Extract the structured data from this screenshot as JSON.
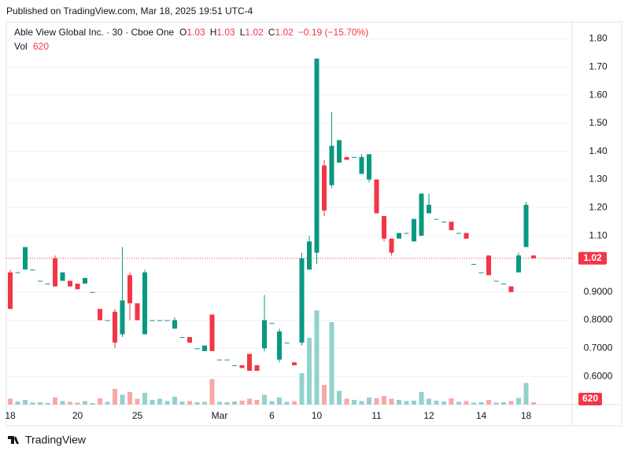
{
  "published": "Published on TradingView.com, Mar 18, 2025 19:51 UTC-4",
  "footer": "TradingView",
  "chart_data": {
    "type": "candlestick",
    "title": "Able View Global Inc. · 30 · Cboe One",
    "ohlc_labels": [
      "O",
      "H",
      "L",
      "C"
    ],
    "change_text": "−0.19 (−15.70%)",
    "volume_label": "Vol",
    "up_color": "#089981",
    "down_color": "#f23645",
    "volume_up_color": "#92d2cc",
    "volume_down_color": "#f7a9a7",
    "ylim": [
      0.5,
      1.86
    ],
    "volume_ylim": [
      0,
      30000
    ],
    "grid": true,
    "yticks": [
      {
        "value": 0.6,
        "label": "0.6000"
      },
      {
        "value": 0.7,
        "label": "0.7000"
      },
      {
        "value": 0.8,
        "label": "0.8000"
      },
      {
        "value": 0.9,
        "label": "0.9000"
      },
      {
        "value": 1.1,
        "label": "1.10"
      },
      {
        "value": 1.2,
        "label": "1.20"
      },
      {
        "value": 1.3,
        "label": "1.30"
      },
      {
        "value": 1.4,
        "label": "1.40"
      },
      {
        "value": 1.5,
        "label": "1.50"
      },
      {
        "value": 1.6,
        "label": "1.60"
      },
      {
        "value": 1.7,
        "label": "1.70"
      },
      {
        "value": 1.8,
        "label": "1.80"
      }
    ],
    "categories": [
      "18",
      null,
      null,
      null,
      null,
      null,
      null,
      null,
      null,
      "20",
      null,
      null,
      null,
      null,
      null,
      null,
      null,
      "25",
      null,
      null,
      null,
      null,
      null,
      null,
      null,
      null,
      null,
      null,
      "Mar",
      null,
      null,
      null,
      null,
      null,
      null,
      "6",
      null,
      null,
      null,
      null,
      null,
      "10",
      null,
      null,
      null,
      null,
      null,
      null,
      null,
      "11",
      null,
      null,
      null,
      null,
      null,
      null,
      "12",
      null,
      null,
      null,
      null,
      null,
      null,
      "14",
      null,
      null,
      null,
      null,
      null,
      "18",
      null
    ],
    "open": [
      0.97,
      0.97,
      0.98,
      0.98,
      0.94,
      0.93,
      1.02,
      0.94,
      0.94,
      0.93,
      0.93,
      0.9,
      0.84,
      0.8,
      0.83,
      0.75,
      0.96,
      0.86,
      0.75,
      0.8,
      0.8,
      0.8,
      0.77,
      0.74,
      0.74,
      0.7,
      0.69,
      0.82,
      0.66,
      0.66,
      0.64,
      0.64,
      0.68,
      0.64,
      0.7,
      0.79,
      0.66,
      0.72,
      0.65,
      0.72,
      0.98,
      1.04,
      1.35,
      1.28,
      1.36,
      1.38,
      1.38,
      1.32,
      1.3,
      1.3,
      1.17,
      1.09,
      1.09,
      1.11,
      1.08,
      1.1,
      1.18,
      1.16,
      1.15,
      1.15,
      1.11,
      1.11,
      1.0,
      0.97,
      1.03,
      0.94,
      0.93,
      0.92,
      0.97,
      1.06,
      1.03
    ],
    "high": [
      0.98,
      0.97,
      1.06,
      0.98,
      0.94,
      0.93,
      1.03,
      0.97,
      0.94,
      0.93,
      0.95,
      0.9,
      0.84,
      0.8,
      0.84,
      1.06,
      0.97,
      0.86,
      0.98,
      0.8,
      0.8,
      0.8,
      0.81,
      0.74,
      0.74,
      0.7,
      0.71,
      0.82,
      0.66,
      0.66,
      0.64,
      0.64,
      0.68,
      0.64,
      0.89,
      0.79,
      0.77,
      0.72,
      0.65,
      1.04,
      1.1,
      1.73,
      1.37,
      1.54,
      1.44,
      1.38,
      1.38,
      1.39,
      1.39,
      1.3,
      1.17,
      1.09,
      1.11,
      1.11,
      1.16,
      1.25,
      1.25,
      1.16,
      1.15,
      1.15,
      1.11,
      1.11,
      1.0,
      0.97,
      1.03,
      0.94,
      0.93,
      0.92,
      1.04,
      1.22,
      1.03
    ],
    "low": [
      0.84,
      0.97,
      0.98,
      0.98,
      0.94,
      0.93,
      0.92,
      0.94,
      0.92,
      0.91,
      0.93,
      0.9,
      0.8,
      0.8,
      0.7,
      0.74,
      0.8,
      0.8,
      0.75,
      0.8,
      0.8,
      0.8,
      0.77,
      0.74,
      0.72,
      0.7,
      0.69,
      0.69,
      0.66,
      0.66,
      0.64,
      0.63,
      0.62,
      0.62,
      0.69,
      0.79,
      0.65,
      0.72,
      0.64,
      0.71,
      0.98,
      1.0,
      1.17,
      1.27,
      1.36,
      1.37,
      1.38,
      1.32,
      1.29,
      1.18,
      1.08,
      1.03,
      1.09,
      1.11,
      1.08,
      1.1,
      1.18,
      1.16,
      1.15,
      1.12,
      1.11,
      1.09,
      1.0,
      0.97,
      0.96,
      0.94,
      0.93,
      0.9,
      0.97,
      1.06,
      1.02
    ],
    "close": [
      0.84,
      0.97,
      1.06,
      0.98,
      0.94,
      0.93,
      0.92,
      0.97,
      0.92,
      0.91,
      0.95,
      0.9,
      0.8,
      0.8,
      0.72,
      0.87,
      0.86,
      0.8,
      0.97,
      0.8,
      0.8,
      0.8,
      0.8,
      0.74,
      0.72,
      0.7,
      0.71,
      0.69,
      0.66,
      0.66,
      0.64,
      0.63,
      0.62,
      0.62,
      0.8,
      0.79,
      0.76,
      0.72,
      0.64,
      1.02,
      1.08,
      1.73,
      1.19,
      1.42,
      1.44,
      1.37,
      1.38,
      1.38,
      1.39,
      1.18,
      1.09,
      1.04,
      1.11,
      1.11,
      1.16,
      1.25,
      1.21,
      1.16,
      1.15,
      1.12,
      1.11,
      1.09,
      1.0,
      0.97,
      0.96,
      0.94,
      0.93,
      0.9,
      1.03,
      1.21,
      1.02
    ],
    "volume": [
      1500,
      800,
      1200,
      500,
      600,
      400,
      1800,
      900,
      700,
      500,
      900,
      400,
      1600,
      700,
      4000,
      2500,
      3200,
      1500,
      3000,
      1200,
      1500,
      900,
      2000,
      800,
      900,
      600,
      700,
      6500,
      700,
      600,
      800,
      1000,
      1500,
      1200,
      2500,
      900,
      1800,
      700,
      900,
      8000,
      17000,
      24000,
      5000,
      21000,
      3500,
      1500,
      1200,
      900,
      1800,
      1600,
      2200,
      1500,
      1200,
      900,
      1000,
      3200,
      1500,
      1000,
      800,
      1600,
      700,
      900,
      500,
      600,
      1200,
      500,
      600,
      900,
      1700,
      5500,
      620
    ]
  }
}
